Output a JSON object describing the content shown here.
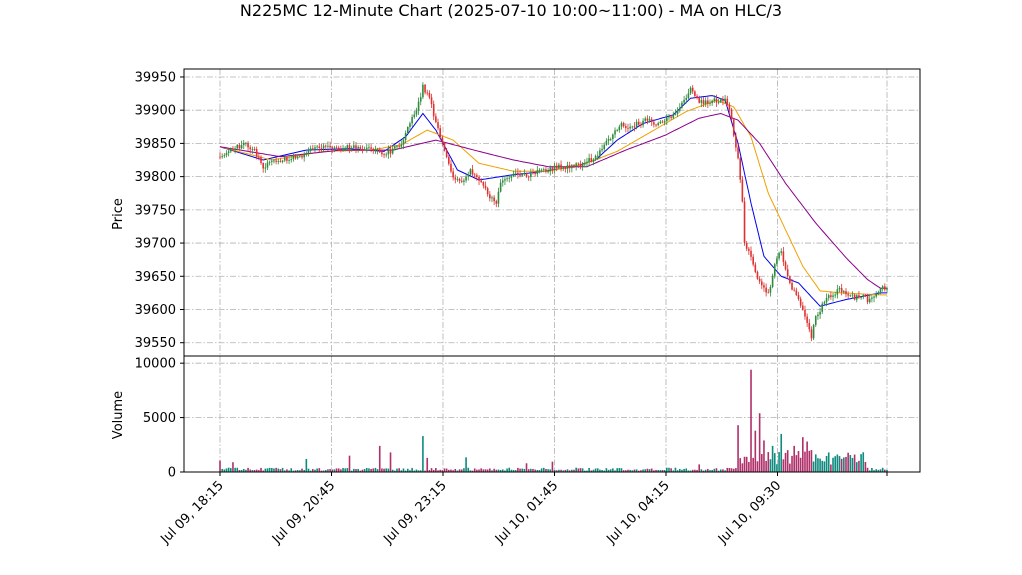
{
  "chart_data": {
    "type": "candlestick",
    "title": "N225MC 12-Minute Chart (2025-07-10 10:00~11:00) - MA on HLC/3",
    "ylabel": "Price",
    "volume_label": "Volume",
    "ylim": [
      39530,
      39962
    ],
    "volume_ylim": [
      0,
      10200
    ],
    "price_ticks": [
      "39550",
      "39600",
      "39650",
      "39700",
      "39750",
      "39800",
      "39850",
      "39900",
      "39950"
    ],
    "volume_ticks": [
      "0",
      "5000",
      "10000"
    ],
    "x_tick_labels": [
      "Jul 09, 18:15",
      "Jul 09, 20:45",
      "Jul 09, 23:15",
      "Jul 10, 01:45",
      "Jul 10, 04:15",
      "Jul 10, 09:30"
    ],
    "colors": {
      "up": "#2e8b3a",
      "down": "#e03030",
      "vol_up": "#0f8a7e",
      "vol_down": "#b0306a",
      "ma_short": "#0000ee",
      "ma_mid": "#f0a000",
      "ma_long": "#8b008b"
    },
    "grid": true,
    "price_path": [
      [
        0,
        39830
      ],
      [
        4,
        39840
      ],
      [
        8,
        39845
      ],
      [
        12,
        39848
      ],
      [
        16,
        39840
      ],
      [
        20,
        39815
      ],
      [
        24,
        39820
      ],
      [
        28,
        39825
      ],
      [
        32,
        39828
      ],
      [
        36,
        39830
      ],
      [
        40,
        39835
      ],
      [
        44,
        39845
      ],
      [
        48,
        39846
      ],
      [
        52,
        39840
      ],
      [
        56,
        39842
      ],
      [
        60,
        39845
      ],
      [
        64,
        39846
      ],
      [
        68,
        39842
      ],
      [
        72,
        39838
      ],
      [
        76,
        39835
      ],
      [
        80,
        39840
      ],
      [
        84,
        39850
      ],
      [
        88,
        39880
      ],
      [
        92,
        39910
      ],
      [
        94,
        39935
      ],
      [
        97,
        39920
      ],
      [
        100,
        39880
      ],
      [
        104,
        39840
      ],
      [
        108,
        39800
      ],
      [
        112,
        39790
      ],
      [
        116,
        39810
      ],
      [
        120,
        39795
      ],
      [
        124,
        39775
      ],
      [
        128,
        39760
      ],
      [
        130,
        39790
      ],
      [
        134,
        39800
      ],
      [
        138,
        39805
      ],
      [
        142,
        39800
      ],
      [
        146,
        39805
      ],
      [
        150,
        39810
      ],
      [
        154,
        39812
      ],
      [
        158,
        39815
      ],
      [
        162,
        39815
      ],
      [
        166,
        39818
      ],
      [
        170,
        39822
      ],
      [
        174,
        39830
      ],
      [
        178,
        39845
      ],
      [
        182,
        39865
      ],
      [
        186,
        39878
      ],
      [
        190,
        39875
      ],
      [
        194,
        39880
      ],
      [
        198,
        39885
      ],
      [
        202,
        39880
      ],
      [
        206,
        39885
      ],
      [
        210,
        39892
      ],
      [
        214,
        39910
      ],
      [
        218,
        39930
      ],
      [
        222,
        39915
      ],
      [
        226,
        39910
      ],
      [
        230,
        39915
      ],
      [
        234,
        39915
      ],
      [
        236,
        39905
      ],
      [
        238,
        39860
      ],
      [
        240,
        39830
      ],
      [
        242,
        39760
      ],
      [
        244,
        39690
      ],
      [
        246,
        39680
      ],
      [
        248,
        39660
      ],
      [
        250,
        39640
      ],
      [
        252,
        39630
      ],
      [
        254,
        39625
      ],
      [
        256,
        39650
      ],
      [
        258,
        39680
      ],
      [
        260,
        39690
      ],
      [
        262,
        39660
      ],
      [
        264,
        39640
      ],
      [
        266,
        39625
      ],
      [
        268,
        39615
      ],
      [
        270,
        39600
      ],
      [
        272,
        39580
      ],
      [
        274,
        39560
      ],
      [
        276,
        39590
      ],
      [
        278,
        39600
      ],
      [
        280,
        39610
      ],
      [
        282,
        39618
      ],
      [
        284,
        39622
      ],
      [
        286,
        39630
      ],
      [
        288,
        39628
      ],
      [
        290,
        39620
      ],
      [
        292,
        39622
      ],
      [
        294,
        39615
      ],
      [
        296,
        39620
      ],
      [
        298,
        39618
      ],
      [
        300,
        39615
      ],
      [
        302,
        39620
      ],
      [
        304,
        39622
      ],
      [
        306,
        39630
      ],
      [
        308,
        39632
      ]
    ],
    "volume_spikes": [
      [
        0,
        1050
      ],
      [
        6,
        900
      ],
      [
        40,
        1200
      ],
      [
        60,
        1500
      ],
      [
        74,
        2400
      ],
      [
        79,
        1800
      ],
      [
        94,
        3300
      ],
      [
        96,
        1300
      ],
      [
        114,
        1350
      ],
      [
        142,
        800
      ],
      [
        154,
        950
      ],
      [
        222,
        700
      ],
      [
        240,
        4300
      ],
      [
        246,
        9400
      ],
      [
        248,
        3800
      ],
      [
        250,
        5400
      ],
      [
        252,
        2900
      ],
      [
        256,
        2400
      ],
      [
        260,
        3500
      ],
      [
        266,
        2400
      ],
      [
        270,
        3200
      ],
      [
        272,
        2800
      ],
      [
        282,
        1800
      ]
    ],
    "ma_short": [
      [
        0,
        39845
      ],
      [
        20,
        39825
      ],
      [
        40,
        39840
      ],
      [
        60,
        39842
      ],
      [
        76,
        39838
      ],
      [
        86,
        39860
      ],
      [
        94,
        39895
      ],
      [
        100,
        39870
      ],
      [
        110,
        39810
      ],
      [
        120,
        39795
      ],
      [
        134,
        39802
      ],
      [
        150,
        39808
      ],
      [
        164,
        39815
      ],
      [
        174,
        39825
      ],
      [
        184,
        39855
      ],
      [
        196,
        39880
      ],
      [
        210,
        39893
      ],
      [
        218,
        39918
      ],
      [
        228,
        39922
      ],
      [
        234,
        39915
      ],
      [
        240,
        39850
      ],
      [
        246,
        39760
      ],
      [
        252,
        39680
      ],
      [
        260,
        39650
      ],
      [
        268,
        39640
      ],
      [
        278,
        39605
      ],
      [
        290,
        39615
      ],
      [
        306,
        39625
      ]
    ],
    "ma_mid": [
      [
        0,
        39845
      ],
      [
        24,
        39825
      ],
      [
        48,
        39838
      ],
      [
        70,
        39840
      ],
      [
        84,
        39848
      ],
      [
        96,
        39870
      ],
      [
        108,
        39855
      ],
      [
        120,
        39820
      ],
      [
        136,
        39808
      ],
      [
        152,
        39808
      ],
      [
        168,
        39818
      ],
      [
        184,
        39838
      ],
      [
        200,
        39868
      ],
      [
        216,
        39898
      ],
      [
        230,
        39915
      ],
      [
        238,
        39905
      ],
      [
        246,
        39860
      ],
      [
        254,
        39775
      ],
      [
        262,
        39720
      ],
      [
        270,
        39665
      ],
      [
        278,
        39628
      ],
      [
        288,
        39625
      ],
      [
        306,
        39622
      ]
    ],
    "ma_long": [
      [
        0,
        39845
      ],
      [
        28,
        39830
      ],
      [
        56,
        39840
      ],
      [
        80,
        39840
      ],
      [
        100,
        39855
      ],
      [
        120,
        39838
      ],
      [
        136,
        39825
      ],
      [
        152,
        39815
      ],
      [
        170,
        39815
      ],
      [
        188,
        39840
      ],
      [
        206,
        39862
      ],
      [
        222,
        39888
      ],
      [
        232,
        39895
      ],
      [
        240,
        39885
      ],
      [
        250,
        39850
      ],
      [
        262,
        39790
      ],
      [
        276,
        39730
      ],
      [
        290,
        39678
      ],
      [
        300,
        39645
      ],
      [
        306,
        39632
      ]
    ]
  }
}
